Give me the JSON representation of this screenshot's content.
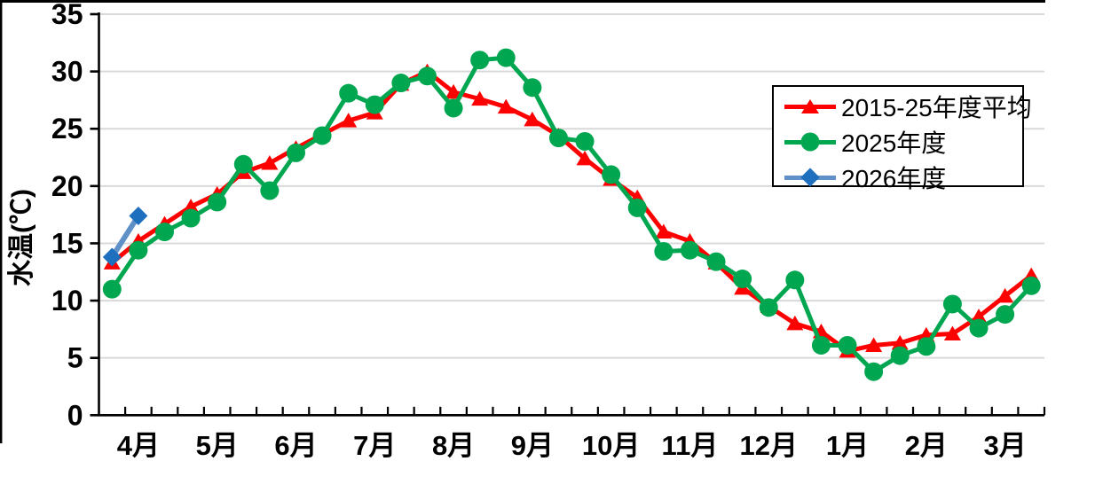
{
  "chart_data": {
    "type": "line",
    "title": "",
    "ylabel": "水温(℃)",
    "ylim": [
      0,
      35
    ],
    "y_ticks": [
      0,
      5,
      10,
      15,
      20,
      25,
      30,
      35
    ],
    "grid": "horizontal-only",
    "grid_color": "#D9D9D9",
    "months": [
      "4月",
      "5月",
      "6月",
      "7月",
      "8月",
      "9月",
      "10月",
      "11月",
      "12月",
      "1月",
      "2月",
      "3月"
    ],
    "points_per_month": 3,
    "x_note": "36 categories = 3 per month (10-day periods, fiscal year Apr-Mar); only month labels shown on axis",
    "legend_position": "top-right",
    "series": [
      {
        "name": "2015-25年度平均",
        "marker": "triangle",
        "color": "#FF0000",
        "line_color": "#FF0000",
        "values": [
          13.3,
          15.2,
          16.7,
          18.2,
          19.3,
          21.2,
          22.0,
          23.3,
          24.5,
          25.7,
          26.4,
          28.9,
          30.0,
          28.2,
          27.6,
          26.9,
          25.8,
          24.4,
          22.4,
          20.6,
          19.0,
          16.0,
          15.2,
          13.3,
          11.1,
          9.5,
          8.0,
          7.3,
          5.6,
          6.1,
          6.3,
          7.0,
          7.1,
          8.6,
          10.4,
          12.2
        ]
      },
      {
        "name": "2025年度",
        "marker": "circle",
        "color": "#00A650",
        "line_color": "#00A650",
        "values": [
          11.0,
          14.4,
          16.0,
          17.2,
          18.6,
          21.9,
          19.6,
          22.9,
          24.4,
          28.1,
          27.1,
          29.0,
          29.6,
          26.8,
          31.0,
          31.2,
          28.6,
          24.2,
          23.9,
          21.0,
          18.1,
          14.3,
          14.4,
          13.4,
          11.9,
          9.4,
          11.8,
          6.1,
          6.1,
          3.8,
          5.2,
          6.0,
          9.7,
          7.6,
          8.8,
          11.3
        ]
      },
      {
        "name": "2026年度",
        "marker": "diamond",
        "color": "#1E6FBE",
        "line_color": "#6090C8",
        "values": [
          13.8,
          17.4
        ]
      }
    ]
  },
  "colors": {
    "axis": "#000000",
    "gridline": "#D9D9D9",
    "background": "#FFFFFF",
    "legend_border": "#000000"
  }
}
